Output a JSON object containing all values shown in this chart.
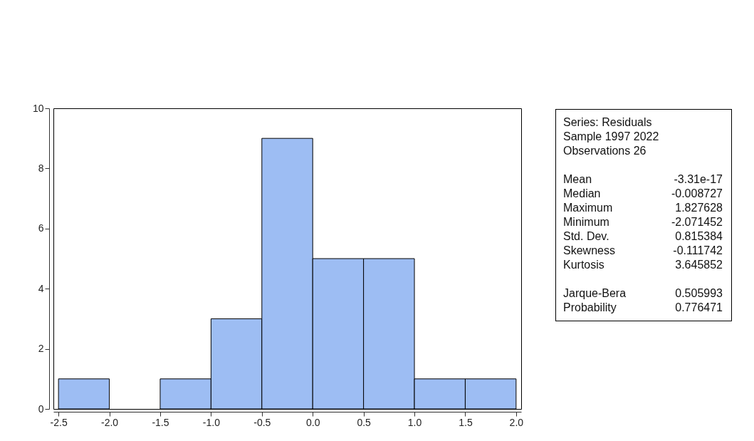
{
  "chart_data": [
    {
      "type": "histogram",
      "bins": [
        -2.5,
        -2.0,
        -1.5,
        -1.0,
        -0.5,
        0.0,
        0.5,
        1.0,
        1.5,
        2.0
      ],
      "values": [
        1,
        0,
        1,
        3,
        9,
        5,
        5,
        1,
        1
      ],
      "color": "#9dbdf3",
      "xlim": [
        -2.55,
        2.05
      ],
      "xticks": [
        {
          "value": -2.5,
          "label": "-2.5"
        },
        {
          "value": -2.0,
          "label": "-2.0"
        },
        {
          "value": -1.5,
          "label": "-1.5"
        },
        {
          "value": -1.0,
          "label": "-1.0"
        },
        {
          "value": -0.5,
          "label": "-0.5"
        },
        {
          "value": 0,
          "label": "0.0"
        },
        {
          "value": 0.5,
          "label": "0.5"
        },
        {
          "value": 1.0,
          "label": "1.0"
        },
        {
          "value": 1.5,
          "label": "1.5"
        },
        {
          "value": 2.0,
          "label": "2.0"
        }
      ],
      "ylim": [
        0,
        10
      ],
      "yticks": [
        0,
        2,
        4,
        6,
        8,
        10
      ],
      "grid": false
    },
    {
      "type": "other",
      "annotations": [
        "Series: Residuals",
        "Sample 1997 2022",
        "Observations 26",
        "Mean",
        "-3.31e-17",
        "Median",
        "-0.008727",
        "Maximum",
        "1.827628",
        "Minimum",
        "-2.071452",
        "Std. Dev.",
        "0.815384",
        "Skewness",
        "-0.111742",
        "Kurtosis",
        "3.645852",
        "Jarque-Bera",
        "0.505993",
        "Probability",
        "0.776471"
      ]
    }
  ]
}
